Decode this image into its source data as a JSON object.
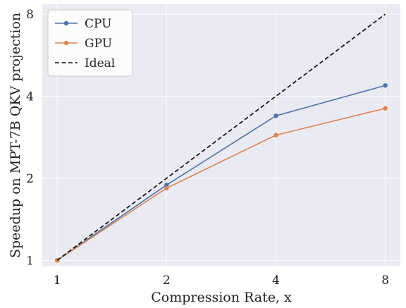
{
  "chart_data": {
    "type": "line",
    "xscale": "log2",
    "yscale": "log2",
    "x": [
      1,
      2,
      4,
      8
    ],
    "xticks": [
      "1",
      "2",
      "4",
      "8"
    ],
    "yticks": [
      "1",
      "2",
      "4",
      "8"
    ],
    "xlim": [
      0.91,
      8.8
    ],
    "ylim": [
      0.95,
      8.7
    ],
    "xlabel": "Compression Rate, x",
    "ylabel": "Speedup on MPT-7B QKV projection",
    "grid": true,
    "legend_position": "top-left",
    "series": [
      {
        "name": "CPU",
        "values": [
          1.0,
          1.89,
          3.39,
          4.38
        ],
        "color": "#4c72b0",
        "style": "solid",
        "marker": "circle"
      },
      {
        "name": "GPU",
        "values": [
          1.0,
          1.84,
          2.88,
          3.61
        ],
        "color": "#dd8452",
        "style": "solid",
        "marker": "circle"
      },
      {
        "name": "Ideal",
        "values": [
          1,
          2,
          4,
          8
        ],
        "color": "#111111",
        "style": "dashed",
        "marker": "none"
      }
    ]
  },
  "colors": {
    "plot_background": "#eaeaf2",
    "grid": "#ffffff"
  }
}
